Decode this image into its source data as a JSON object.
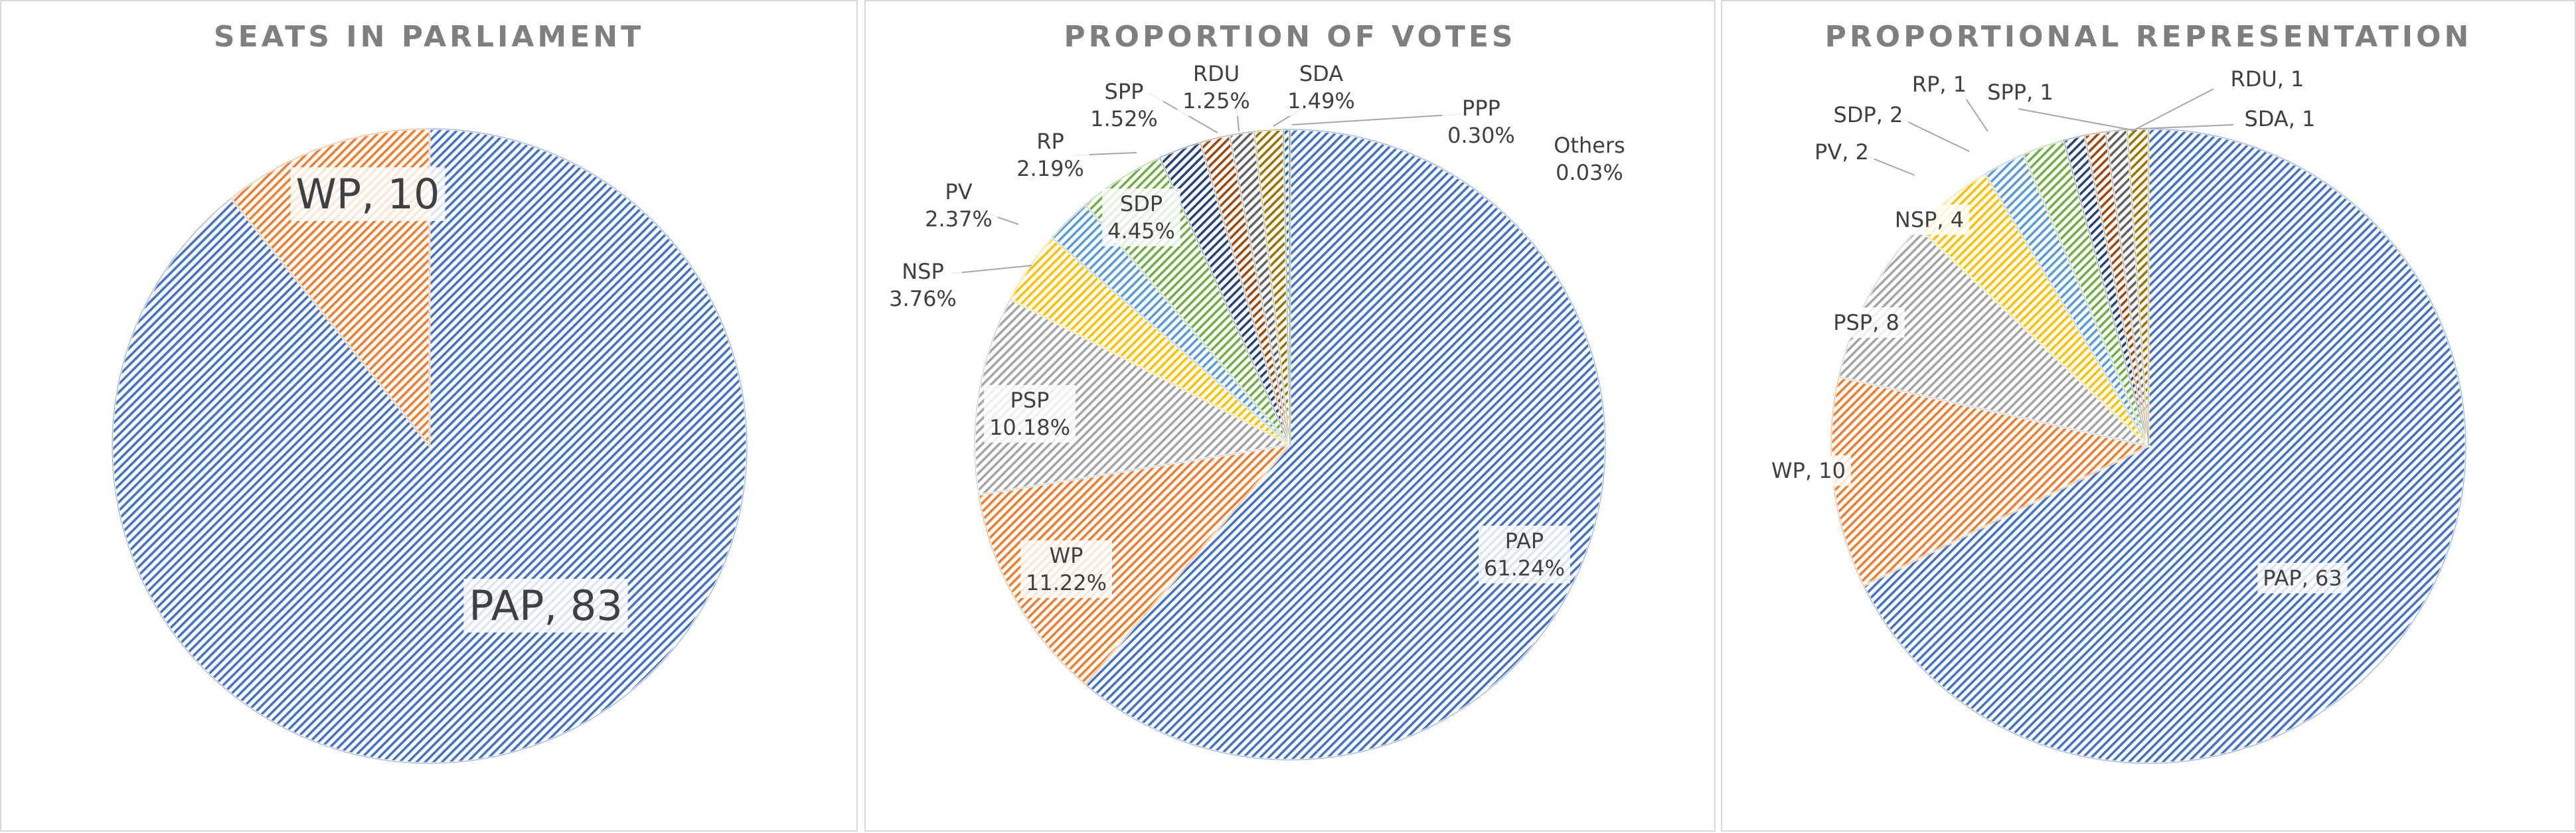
{
  "patterns": {
    "color_count": 9
  },
  "chart_data": [
    {
      "type": "pie",
      "title": "SEATS IN PARLIAMENT",
      "slices": [
        {
          "label": "PAP",
          "value": 83,
          "color": "#4472C4",
          "text": "PAP, 83"
        },
        {
          "label": "WP",
          "value": 10,
          "color": "#ED7D31",
          "text": "WP, 10"
        }
      ]
    },
    {
      "type": "pie",
      "title": "PROPORTION OF VOTES",
      "slices": [
        {
          "label": "PAP",
          "value": 61.24,
          "color": "#4472C4",
          "text": "PAP\n61.24%"
        },
        {
          "label": "WP",
          "value": 11.22,
          "color": "#ED7D31",
          "text": "WP\n11.22%"
        },
        {
          "label": "PSP",
          "value": 10.18,
          "color": "#A5A5A5",
          "text": "PSP\n10.18%"
        },
        {
          "label": "NSP",
          "value": 3.76,
          "color": "#FFC000",
          "text": "NSP\n3.76%"
        },
        {
          "label": "PV",
          "value": 2.37,
          "color": "#5B9BD5",
          "text": "PV\n2.37%"
        },
        {
          "label": "SDP",
          "value": 4.45,
          "color": "#70AD47",
          "text": "SDP\n4.45%"
        },
        {
          "label": "RP",
          "value": 2.19,
          "color": "#264478",
          "text": "RP\n2.19%"
        },
        {
          "label": "SPP",
          "value": 1.52,
          "color": "#9E480E",
          "text": "SPP\n1.52%"
        },
        {
          "label": "RDU",
          "value": 1.25,
          "color": "#636363",
          "text": "RDU\n1.25%"
        },
        {
          "label": "SDA",
          "value": 1.49,
          "color": "#997300",
          "text": "SDA\n1.49%"
        },
        {
          "label": "PPP",
          "value": 0.3,
          "color": "#255E91",
          "text": "PPP\n0.30%"
        },
        {
          "label": "Others",
          "value": 0.03,
          "color": "#43682B",
          "text": "Others\n0.03%"
        }
      ]
    },
    {
      "type": "pie",
      "title": "PROPORTIONAL REPRESENTATION",
      "slices": [
        {
          "label": "PAP",
          "value": 63,
          "color": "#4472C4",
          "text": "PAP, 63"
        },
        {
          "label": "WP",
          "value": 10,
          "color": "#ED7D31",
          "text": "WP, 10"
        },
        {
          "label": "PSP",
          "value": 8,
          "color": "#A5A5A5",
          "text": "PSP, 8"
        },
        {
          "label": "NSP",
          "value": 4,
          "color": "#FFC000",
          "text": "NSP, 4"
        },
        {
          "label": "PV",
          "value": 2,
          "color": "#5B9BD5",
          "text": "PV, 2"
        },
        {
          "label": "SDP",
          "value": 2,
          "color": "#70AD47",
          "text": "SDP, 2"
        },
        {
          "label": "RP",
          "value": 1,
          "color": "#264478",
          "text": "RP, 1"
        },
        {
          "label": "SPP",
          "value": 1,
          "color": "#9E480E",
          "text": "SPP, 1"
        },
        {
          "label": "RDU",
          "value": 1,
          "color": "#636363",
          "text": "RDU, 1"
        },
        {
          "label": "SDA",
          "value": 1,
          "color": "#997300",
          "text": "SDA, 1"
        }
      ]
    }
  ]
}
